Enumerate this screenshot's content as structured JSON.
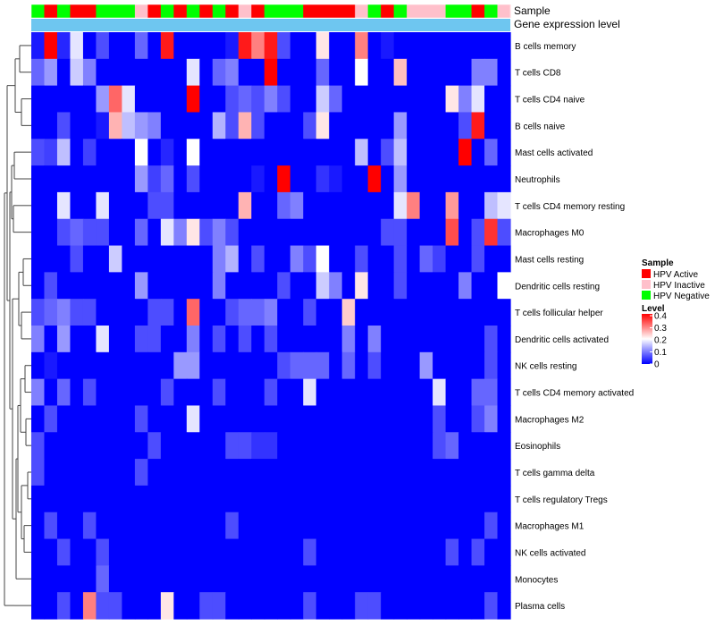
{
  "colors": {
    "hpv_active": "#ff0000",
    "hpv_inactive": "#ffc0cb",
    "hpv_negative": "#00ff00",
    "gene_expression": "#6ec6f0",
    "scale_low": "#0000ff",
    "scale_mid": "#ffffff",
    "scale_high": "#ff0000",
    "dendrogram": "#444444"
  },
  "annotations": {
    "sample_label": "Sample",
    "gene_label": "Gene expression level",
    "sample_sequence": [
      "N",
      "A",
      "N",
      "A",
      "A",
      "N",
      "N",
      "N",
      "I",
      "A",
      "N",
      "A",
      "N",
      "A",
      "N",
      "A",
      "I",
      "A",
      "N",
      "N",
      "N",
      "A",
      "A",
      "A",
      "A",
      "I",
      "N",
      "A",
      "N",
      "I",
      "I",
      "I",
      "N",
      "N",
      "A",
      "N",
      "I"
    ]
  },
  "legend": {
    "sample_title": "Sample",
    "sample_items": [
      {
        "key": "A",
        "label": "HPV Active"
      },
      {
        "key": "I",
        "label": "HPV Inactive"
      },
      {
        "key": "N",
        "label": "HPV Negative"
      }
    ],
    "level_title": "Level",
    "level_ticks": [
      {
        "value": 0.4,
        "label": "0.4"
      },
      {
        "value": 0.3,
        "label": "0.3"
      },
      {
        "value": 0.2,
        "label": "0.2"
      },
      {
        "value": 0.1,
        "label": "0.1"
      },
      {
        "value": 0,
        "label": "0"
      }
    ]
  },
  "chart_data": {
    "type": "heatmap",
    "title": "",
    "value_range": [
      0,
      0.4
    ],
    "rows": [
      "B cells memory",
      "T cells CD8",
      "T cells CD4 naive",
      "B cells naive",
      "Mast cells activated",
      "Neutrophils",
      "T cells CD4 memory resting",
      "Macrophages M0",
      "Mast cells resting",
      "Dendritic cells resting",
      "T cells follicular helper",
      "Dendritic cells activated",
      "NK cells resting",
      "T cells CD4 memory activated",
      "Macrophages M2",
      "Eosinophils",
      "T cells gamma delta",
      "T cells regulatory  Tregs",
      "Macrophages M1",
      "NK cells activated",
      "Monocytes",
      "Plasma cells"
    ],
    "values": [
      [
        0.02,
        0.4,
        0.03,
        0.18,
        0.0,
        0.06,
        0.0,
        0.0,
        0.08,
        0.0,
        0.38,
        0.0,
        0.0,
        0.0,
        0.0,
        0.02,
        0.38,
        0.3,
        0.38,
        0.06,
        0.0,
        0.0,
        0.22,
        0.0,
        0.0,
        0.3,
        0.0,
        0.02,
        0.0,
        0.0,
        0.0,
        0.0,
        0.0,
        0.0,
        0.0,
        0.0,
        0.0
      ],
      [
        0.08,
        0.12,
        0.0,
        0.16,
        0.1,
        0.0,
        0.0,
        0.0,
        0.0,
        0.0,
        0.0,
        0.0,
        0.18,
        0.0,
        0.08,
        0.1,
        0.0,
        0.0,
        0.42,
        0.0,
        0.0,
        0.0,
        0.08,
        0.0,
        0.0,
        0.2,
        0.0,
        0.0,
        0.25,
        0.0,
        0.0,
        0.0,
        0.0,
        0.0,
        0.1,
        0.1,
        0.0
      ],
      [
        0.0,
        0.0,
        0.0,
        0.0,
        0.0,
        0.12,
        0.32,
        0.18,
        0.0,
        0.0,
        0.0,
        0.0,
        0.42,
        0.0,
        0.0,
        0.06,
        0.08,
        0.06,
        0.1,
        0.06,
        0.0,
        0.0,
        0.16,
        0.08,
        0.0,
        0.0,
        0.0,
        0.0,
        0.0,
        0.0,
        0.0,
        0.0,
        0.22,
        0.1,
        0.18,
        0.0,
        0.0
      ],
      [
        0.0,
        0.0,
        0.06,
        0.0,
        0.0,
        0.02,
        0.26,
        0.15,
        0.12,
        0.1,
        0.0,
        0.0,
        0.0,
        0.0,
        0.14,
        0.06,
        0.26,
        0.06,
        0.0,
        0.0,
        0.0,
        0.06,
        0.22,
        0.0,
        0.0,
        0.0,
        0.0,
        0.0,
        0.12,
        0.0,
        0.0,
        0.0,
        0.0,
        0.06,
        0.38,
        0.0,
        0.0
      ],
      [
        0.06,
        0.05,
        0.15,
        0.0,
        0.05,
        0.0,
        0.0,
        0.0,
        0.2,
        0.0,
        0.03,
        0.0,
        0.2,
        0.0,
        0.0,
        0.0,
        0.0,
        0.0,
        0.0,
        0.0,
        0.0,
        0.0,
        0.0,
        0.0,
        0.0,
        0.15,
        0.0,
        0.06,
        0.15,
        0.0,
        0.0,
        0.0,
        0.0,
        0.42,
        0.0,
        0.08,
        0.0
      ],
      [
        0.0,
        0.0,
        0.0,
        0.0,
        0.0,
        0.0,
        0.0,
        0.0,
        0.12,
        0.05,
        0.08,
        0.0,
        0.06,
        0.0,
        0.0,
        0.0,
        0.0,
        0.02,
        0.0,
        0.42,
        0.0,
        0.0,
        0.04,
        0.02,
        0.0,
        0.0,
        0.42,
        0.0,
        0.12,
        0.0,
        0.0,
        0.0,
        0.0,
        0.0,
        0.0,
        0.0,
        0.0
      ],
      [
        0.0,
        0.0,
        0.18,
        0.0,
        0.0,
        0.18,
        0.0,
        0.0,
        0.0,
        0.06,
        0.06,
        0.0,
        0.0,
        0.0,
        0.0,
        0.0,
        0.26,
        0.0,
        0.0,
        0.08,
        0.1,
        0.0,
        0.0,
        0.0,
        0.0,
        0.0,
        0.0,
        0.0,
        0.18,
        0.3,
        0.0,
        0.0,
        0.28,
        0.0,
        0.0,
        0.15,
        0.18
      ],
      [
        0.0,
        0.0,
        0.06,
        0.08,
        0.06,
        0.06,
        0.0,
        0.0,
        0.08,
        0.0,
        0.18,
        0.1,
        0.22,
        0.06,
        0.1,
        0.06,
        0.0,
        0.0,
        0.0,
        0.0,
        0.0,
        0.0,
        0.0,
        0.0,
        0.0,
        0.0,
        0.0,
        0.06,
        0.06,
        0.0,
        0.0,
        0.0,
        0.34,
        0.0,
        0.06,
        0.36,
        0.06
      ],
      [
        0.0,
        0.0,
        0.0,
        0.06,
        0.0,
        0.0,
        0.16,
        0.0,
        0.0,
        0.0,
        0.0,
        0.0,
        0.0,
        0.0,
        0.1,
        0.14,
        0.0,
        0.06,
        0.0,
        0.0,
        0.1,
        0.06,
        0.2,
        0.0,
        0.0,
        0.06,
        0.0,
        0.0,
        0.06,
        0.0,
        0.08,
        0.05,
        0.0,
        0.0,
        0.06,
        0.0,
        0.0
      ],
      [
        0.0,
        0.06,
        0.0,
        0.0,
        0.0,
        0.0,
        0.0,
        0.0,
        0.12,
        0.0,
        0.0,
        0.0,
        0.0,
        0.0,
        0.1,
        0.0,
        0.0,
        0.0,
        0.0,
        0.06,
        0.0,
        0.0,
        0.16,
        0.1,
        0.0,
        0.22,
        0.0,
        0.0,
        0.06,
        0.0,
        0.0,
        0.0,
        0.0,
        0.1,
        0.0,
        0.0,
        0.2
      ],
      [
        0.06,
        0.08,
        0.1,
        0.06,
        0.06,
        0.0,
        0.0,
        0.0,
        0.0,
        0.06,
        0.06,
        0.0,
        0.32,
        0.0,
        0.0,
        0.06,
        0.08,
        0.08,
        0.1,
        0.0,
        0.0,
        0.06,
        0.0,
        0.0,
        0.24,
        0.0,
        0.0,
        0.0,
        0.0,
        0.0,
        0.0,
        0.0,
        0.0,
        0.0,
        0.0,
        0.0,
        0.0
      ],
      [
        0.1,
        0.0,
        0.12,
        0.0,
        0.0,
        0.18,
        0.0,
        0.0,
        0.06,
        0.06,
        0.0,
        0.0,
        0.1,
        0.0,
        0.06,
        0.0,
        0.06,
        0.0,
        0.06,
        0.0,
        0.0,
        0.0,
        0.0,
        0.0,
        0.1,
        0.0,
        0.1,
        0.0,
        0.0,
        0.0,
        0.0,
        0.0,
        0.0,
        0.0,
        0.0,
        0.06,
        0.0
      ],
      [
        0.0,
        0.02,
        0.0,
        0.0,
        0.0,
        0.0,
        0.0,
        0.0,
        0.0,
        0.0,
        0.0,
        0.12,
        0.12,
        0.0,
        0.0,
        0.0,
        0.0,
        0.0,
        0.0,
        0.06,
        0.08,
        0.08,
        0.08,
        0.0,
        0.08,
        0.0,
        0.06,
        0.0,
        0.0,
        0.0,
        0.12,
        0.0,
        0.0,
        0.0,
        0.0,
        0.06,
        0.0
      ],
      [
        0.1,
        0.0,
        0.08,
        0.0,
        0.06,
        0.0,
        0.0,
        0.0,
        0.0,
        0.0,
        0.06,
        0.0,
        0.0,
        0.0,
        0.06,
        0.0,
        0.0,
        0.0,
        0.06,
        0.0,
        0.0,
        0.18,
        0.0,
        0.0,
        0.0,
        0.0,
        0.0,
        0.0,
        0.0,
        0.0,
        0.0,
        0.18,
        0.0,
        0.0,
        0.08,
        0.08,
        0.0
      ],
      [
        0.0,
        0.06,
        0.0,
        0.0,
        0.0,
        0.0,
        0.0,
        0.0,
        0.06,
        0.0,
        0.0,
        0.0,
        0.18,
        0.0,
        0.0,
        0.0,
        0.0,
        0.0,
        0.0,
        0.0,
        0.0,
        0.0,
        0.0,
        0.0,
        0.0,
        0.0,
        0.0,
        0.0,
        0.0,
        0.0,
        0.0,
        0.06,
        0.0,
        0.0,
        0.06,
        0.1,
        0.0
      ],
      [
        0.06,
        0.0,
        0.0,
        0.0,
        0.0,
        0.0,
        0.0,
        0.0,
        0.0,
        0.06,
        0.0,
        0.0,
        0.0,
        0.0,
        0.0,
        0.06,
        0.06,
        0.04,
        0.04,
        0.0,
        0.0,
        0.0,
        0.0,
        0.0,
        0.0,
        0.0,
        0.0,
        0.0,
        0.0,
        0.0,
        0.0,
        0.06,
        0.08,
        0.0,
        0.0,
        0.0,
        0.0
      ],
      [
        0.06,
        0.0,
        0.0,
        0.0,
        0.0,
        0.0,
        0.0,
        0.0,
        0.06,
        0.0,
        0.0,
        0.0,
        0.0,
        0.0,
        0.0,
        0.0,
        0.0,
        0.0,
        0.0,
        0.0,
        0.0,
        0.0,
        0.0,
        0.0,
        0.0,
        0.0,
        0.0,
        0.0,
        0.0,
        0.0,
        0.0,
        0.0,
        0.0,
        0.0,
        0.0,
        0.0,
        0.0
      ],
      [
        0.0,
        0.0,
        0.0,
        0.0,
        0.0,
        0.0,
        0.0,
        0.0,
        0.0,
        0.0,
        0.0,
        0.0,
        0.0,
        0.0,
        0.0,
        0.0,
        0.0,
        0.0,
        0.0,
        0.0,
        0.0,
        0.0,
        0.0,
        0.0,
        0.0,
        0.0,
        0.0,
        0.0,
        0.0,
        0.0,
        0.0,
        0.0,
        0.0,
        0.0,
        0.0,
        0.0,
        0.0
      ],
      [
        0.0,
        0.06,
        0.0,
        0.0,
        0.06,
        0.0,
        0.0,
        0.0,
        0.0,
        0.0,
        0.0,
        0.0,
        0.0,
        0.0,
        0.0,
        0.06,
        0.0,
        0.0,
        0.0,
        0.0,
        0.0,
        0.0,
        0.0,
        0.0,
        0.0,
        0.0,
        0.0,
        0.0,
        0.0,
        0.0,
        0.0,
        0.0,
        0.0,
        0.0,
        0.0,
        0.06,
        0.0
      ],
      [
        0.0,
        0.0,
        0.06,
        0.0,
        0.0,
        0.06,
        0.0,
        0.0,
        0.0,
        0.0,
        0.0,
        0.0,
        0.0,
        0.0,
        0.0,
        0.0,
        0.0,
        0.0,
        0.0,
        0.0,
        0.0,
        0.06,
        0.0,
        0.0,
        0.0,
        0.0,
        0.0,
        0.0,
        0.0,
        0.0,
        0.0,
        0.0,
        0.06,
        0.0,
        0.06,
        0.0,
        0.0
      ],
      [
        0.0,
        0.0,
        0.0,
        0.0,
        0.0,
        0.08,
        0.0,
        0.0,
        0.0,
        0.0,
        0.0,
        0.0,
        0.0,
        0.0,
        0.0,
        0.0,
        0.0,
        0.0,
        0.0,
        0.0,
        0.0,
        0.0,
        0.0,
        0.0,
        0.0,
        0.0,
        0.0,
        0.0,
        0.0,
        0.0,
        0.0,
        0.0,
        0.0,
        0.0,
        0.0,
        0.0,
        0.0
      ],
      [
        0.0,
        0.0,
        0.06,
        0.0,
        0.3,
        0.06,
        0.06,
        0.0,
        0.0,
        0.0,
        0.22,
        0.0,
        0.0,
        0.06,
        0.06,
        0.0,
        0.0,
        0.0,
        0.0,
        0.0,
        0.0,
        0.06,
        0.0,
        0.0,
        0.0,
        0.06,
        0.06,
        0.0,
        0.0,
        0.0,
        0.0,
        0.0,
        0.0,
        0.0,
        0.0,
        0.06,
        0.0
      ]
    ]
  }
}
